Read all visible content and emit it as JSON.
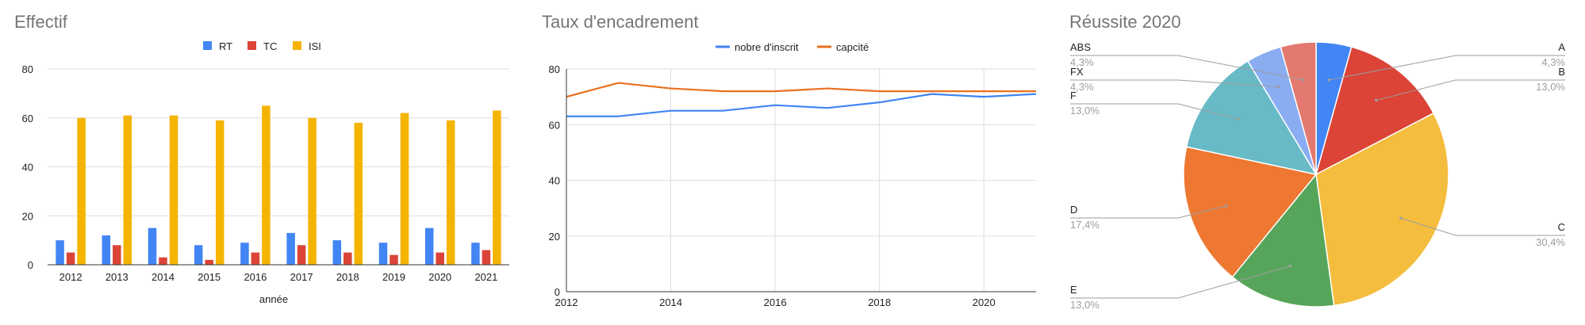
{
  "charts": [
    {
      "type": "bar",
      "title": "Effectif",
      "xlabel": "année",
      "categories": [
        "2012",
        "2013",
        "2014",
        "2015",
        "2016",
        "2017",
        "2018",
        "2019",
        "2020",
        "2021"
      ],
      "series": [
        {
          "name": "RT",
          "color": "#4285f4",
          "values": [
            10,
            12,
            15,
            8,
            9,
            13,
            10,
            9,
            15,
            9
          ]
        },
        {
          "name": "TC",
          "color": "#db4437",
          "values": [
            5,
            8,
            3,
            2,
            5,
            8,
            5,
            4,
            5,
            6
          ]
        },
        {
          "name": "ISI",
          "color": "#f4b400",
          "values": [
            60,
            61,
            61,
            59,
            65,
            60,
            58,
            62,
            59,
            63
          ]
        }
      ],
      "ylim": [
        0,
        80
      ],
      "yticks": [
        "0",
        "20",
        "40",
        "60",
        "80"
      ],
      "legend_position": "top"
    },
    {
      "type": "line",
      "title": "Taux d'encadrement",
      "x": [
        2012,
        2013,
        2014,
        2015,
        2016,
        2017,
        2018,
        2019,
        2020,
        2021
      ],
      "series": [
        {
          "name": "nobre d'inscrit",
          "color": "#4285f4",
          "values": [
            63,
            63,
            65,
            65,
            67,
            66,
            68,
            71,
            70,
            71
          ]
        },
        {
          "name": "capcité",
          "color": "#ea7120",
          "values": [
            70,
            75,
            73,
            72,
            72,
            73,
            72,
            72,
            72,
            72
          ]
        }
      ],
      "xlim": [
        2012,
        2021
      ],
      "ylim": [
        0,
        80
      ],
      "xticks": [
        "2012",
        "2014",
        "2016",
        "2018",
        "2020"
      ],
      "yticks": [
        "0",
        "20",
        "40",
        "60",
        "80"
      ],
      "grid": true,
      "legend_position": "top"
    },
    {
      "type": "pie",
      "title": "Réussite 2020",
      "slices": [
        {
          "label": "A",
          "value": 4.3,
          "pct": "4,3%",
          "color": "#4285f4"
        },
        {
          "label": "B",
          "value": 13.0,
          "pct": "13,0%",
          "color": "#db4437"
        },
        {
          "label": "C",
          "value": 30.4,
          "pct": "30,4%",
          "color": "#f4bd3e"
        },
        {
          "label": "E",
          "value": 13.0,
          "pct": "13,0%",
          "color": "#57a55a"
        },
        {
          "label": "D",
          "value": 17.4,
          "pct": "17,4%",
          "color": "#ee7732"
        },
        {
          "label": "F",
          "value": 13.0,
          "pct": "13,0%",
          "color": "#67bac6"
        },
        {
          "label": "FX",
          "value": 4.3,
          "pct": "4,3%",
          "color": "#8aacf1"
        },
        {
          "label": "ABS",
          "value": 4.3,
          "pct": "4,3%",
          "color": "#e4796f"
        }
      ]
    }
  ]
}
